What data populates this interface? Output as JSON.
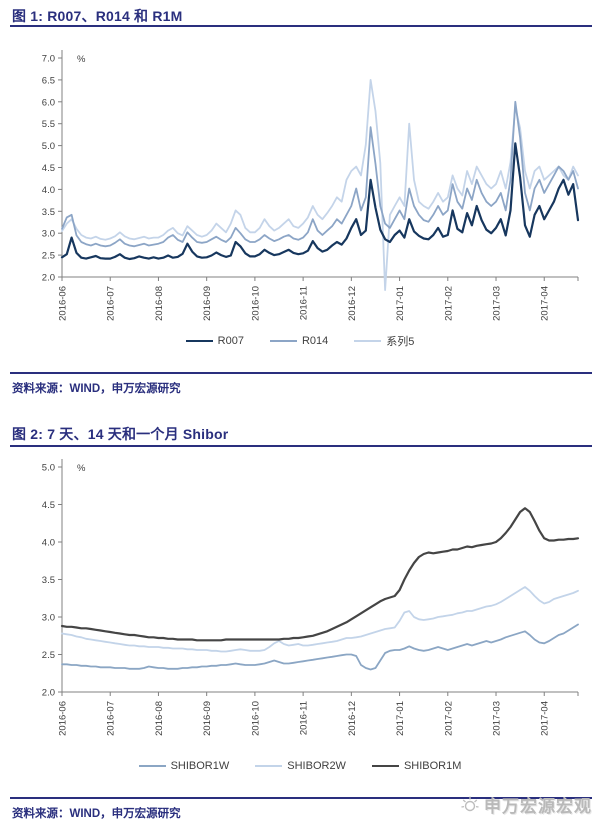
{
  "accent_color": "#2A2F7E",
  "figure1": {
    "title": "图 1: R007、R014 和 R1M",
    "source": "资料来源：WIND，申万宏源研究"
  },
  "figure2": {
    "title": "图 2: 7 天、14 天和一个月 Shibor",
    "source": "资料来源：WIND，申万宏源研究"
  },
  "watermark": {
    "text": "申万宏源宏观"
  },
  "chart_data": [
    {
      "type": "line",
      "title": "图 1: R007、R014 和 R1M",
      "ylabel": "%",
      "ylim": [
        2.0,
        7.0
      ],
      "ytick_step": 0.5,
      "grid": false,
      "legend_position": "bottom",
      "x_tick_labels": [
        "2016-06",
        "2016-07",
        "2016-08",
        "2016-09",
        "2016-10",
        "2016-11",
        "2016-12",
        "2017-01",
        "2017-02",
        "2017-03",
        "2017-04"
      ],
      "draw_reversed": true,
      "series": [
        {
          "name": "R007",
          "color": "#17375E",
          "width": 2.2,
          "values": [
            2.45,
            2.52,
            2.9,
            2.55,
            2.44,
            2.42,
            2.45,
            2.48,
            2.43,
            2.42,
            2.42,
            2.46,
            2.52,
            2.44,
            2.41,
            2.43,
            2.47,
            2.44,
            2.42,
            2.45,
            2.42,
            2.44,
            2.49,
            2.44,
            2.46,
            2.53,
            2.76,
            2.58,
            2.47,
            2.44,
            2.45,
            2.49,
            2.56,
            2.5,
            2.46,
            2.49,
            2.8,
            2.7,
            2.54,
            2.47,
            2.47,
            2.52,
            2.62,
            2.55,
            2.5,
            2.52,
            2.57,
            2.62,
            2.55,
            2.52,
            2.54,
            2.6,
            2.82,
            2.66,
            2.58,
            2.62,
            2.72,
            2.8,
            2.74,
            2.88,
            3.12,
            3.32,
            2.96,
            3.06,
            4.22,
            3.58,
            3.08,
            2.86,
            2.8,
            2.96,
            3.06,
            2.9,
            3.32,
            3.04,
            2.94,
            2.88,
            2.86,
            2.96,
            3.12,
            2.92,
            2.96,
            3.52,
            3.1,
            3.02,
            3.46,
            3.18,
            3.62,
            3.3,
            3.08,
            3.0,
            3.12,
            3.32,
            2.95,
            3.52,
            5.05,
            4.28,
            3.18,
            2.92,
            3.42,
            3.62,
            3.32,
            3.52,
            3.72,
            4.02,
            4.22,
            3.88,
            4.12,
            3.3
          ]
        },
        {
          "name": "R014",
          "color": "#8CA5C6",
          "width": 1.8,
          "values": [
            3.1,
            3.36,
            3.42,
            2.95,
            2.8,
            2.75,
            2.72,
            2.76,
            2.72,
            2.7,
            2.72,
            2.78,
            2.86,
            2.76,
            2.72,
            2.7,
            2.73,
            2.76,
            2.72,
            2.74,
            2.76,
            2.8,
            2.9,
            2.96,
            2.85,
            2.8,
            3.02,
            2.9,
            2.8,
            2.78,
            2.8,
            2.86,
            2.92,
            2.85,
            2.8,
            2.9,
            3.12,
            3.0,
            2.86,
            2.8,
            2.8,
            2.86,
            2.96,
            2.88,
            2.82,
            2.86,
            2.92,
            2.96,
            2.88,
            2.85,
            2.9,
            3.02,
            3.32,
            3.06,
            2.96,
            3.06,
            3.16,
            3.32,
            3.22,
            3.42,
            3.62,
            4.02,
            3.52,
            3.82,
            5.42,
            4.58,
            3.62,
            3.22,
            3.12,
            3.32,
            3.52,
            3.32,
            4.02,
            3.62,
            3.42,
            3.3,
            3.26,
            3.42,
            3.62,
            3.42,
            3.52,
            4.12,
            3.72,
            3.56,
            4.02,
            3.76,
            4.22,
            3.92,
            3.72,
            3.62,
            3.72,
            3.92,
            3.52,
            4.22,
            6.0,
            5.18,
            3.92,
            3.52,
            4.02,
            4.22,
            3.92,
            4.12,
            4.32,
            4.52,
            4.42,
            4.22,
            4.42,
            4.02
          ]
        },
        {
          "name": "系列5",
          "color": "#C4D4E9",
          "width": 1.8,
          "values": [
            3.05,
            3.22,
            3.32,
            3.1,
            2.96,
            2.9,
            2.88,
            2.92,
            2.87,
            2.85,
            2.88,
            2.93,
            3.02,
            2.93,
            2.88,
            2.86,
            2.89,
            2.92,
            2.88,
            2.9,
            2.9,
            2.96,
            3.06,
            3.12,
            3.0,
            2.95,
            3.16,
            3.06,
            2.96,
            2.92,
            2.96,
            3.06,
            3.22,
            3.12,
            3.02,
            3.22,
            3.52,
            3.42,
            3.12,
            3.02,
            3.02,
            3.12,
            3.32,
            3.16,
            3.06,
            3.12,
            3.22,
            3.32,
            3.16,
            3.12,
            3.22,
            3.36,
            3.62,
            3.42,
            3.32,
            3.46,
            3.62,
            3.82,
            3.72,
            4.22,
            4.42,
            4.52,
            4.32,
            5.02,
            6.5,
            5.78,
            4.6,
            1.7,
            3.42,
            3.62,
            3.82,
            3.62,
            5.5,
            4.22,
            3.72,
            3.62,
            3.56,
            3.72,
            3.92,
            3.72,
            3.82,
            4.32,
            4.02,
            3.86,
            4.42,
            4.12,
            4.52,
            4.32,
            4.12,
            4.02,
            4.12,
            4.42,
            4.02,
            4.62,
            5.88,
            5.4,
            4.42,
            4.02,
            4.42,
            4.52,
            4.22,
            4.32,
            4.42,
            4.52,
            4.32,
            4.22,
            4.52,
            4.32
          ]
        }
      ]
    },
    {
      "type": "line",
      "title": "图 2: 7 天、14 天和一个月 Shibor",
      "ylabel": "%",
      "ylim": [
        2.0,
        5.0
      ],
      "ytick_step": 0.5,
      "grid": false,
      "legend_position": "bottom",
      "x_tick_labels": [
        "2016-06",
        "2016-07",
        "2016-08",
        "2016-09",
        "2016-10",
        "2016-11",
        "2016-12",
        "2017-01",
        "2017-02",
        "2017-03",
        "2017-04"
      ],
      "draw_reversed": false,
      "series": [
        {
          "name": "SHIBOR1W",
          "color": "#8BA6C4",
          "width": 1.8,
          "values": [
            2.37,
            2.37,
            2.36,
            2.36,
            2.35,
            2.35,
            2.34,
            2.34,
            2.33,
            2.33,
            2.33,
            2.32,
            2.32,
            2.32,
            2.31,
            2.31,
            2.31,
            2.32,
            2.34,
            2.33,
            2.32,
            2.32,
            2.31,
            2.31,
            2.31,
            2.32,
            2.32,
            2.33,
            2.33,
            2.34,
            2.34,
            2.35,
            2.35,
            2.36,
            2.36,
            2.37,
            2.38,
            2.37,
            2.36,
            2.36,
            2.36,
            2.37,
            2.38,
            2.4,
            2.42,
            2.4,
            2.38,
            2.38,
            2.39,
            2.4,
            2.41,
            2.42,
            2.43,
            2.44,
            2.45,
            2.46,
            2.47,
            2.48,
            2.49,
            2.5,
            2.5,
            2.48,
            2.36,
            2.32,
            2.3,
            2.32,
            2.42,
            2.52,
            2.55,
            2.56,
            2.56,
            2.58,
            2.61,
            2.58,
            2.56,
            2.55,
            2.56,
            2.58,
            2.6,
            2.58,
            2.56,
            2.58,
            2.6,
            2.62,
            2.64,
            2.62,
            2.64,
            2.66,
            2.68,
            2.66,
            2.68,
            2.7,
            2.73,
            2.75,
            2.77,
            2.79,
            2.81,
            2.76,
            2.7,
            2.66,
            2.65,
            2.68,
            2.72,
            2.76,
            2.78,
            2.82,
            2.86,
            2.9
          ]
        },
        {
          "name": "SHIBOR2W",
          "color": "#C3D4E9",
          "width": 1.8,
          "values": [
            2.78,
            2.77,
            2.76,
            2.74,
            2.73,
            2.71,
            2.7,
            2.69,
            2.68,
            2.67,
            2.66,
            2.65,
            2.64,
            2.63,
            2.62,
            2.62,
            2.61,
            2.61,
            2.6,
            2.6,
            2.6,
            2.59,
            2.59,
            2.58,
            2.58,
            2.58,
            2.57,
            2.57,
            2.56,
            2.56,
            2.56,
            2.55,
            2.55,
            2.54,
            2.54,
            2.55,
            2.56,
            2.57,
            2.56,
            2.55,
            2.55,
            2.55,
            2.56,
            2.6,
            2.65,
            2.68,
            2.64,
            2.62,
            2.63,
            2.64,
            2.62,
            2.62,
            2.63,
            2.64,
            2.65,
            2.66,
            2.67,
            2.68,
            2.7,
            2.72,
            2.72,
            2.73,
            2.74,
            2.76,
            2.78,
            2.8,
            2.82,
            2.84,
            2.85,
            2.86,
            2.95,
            3.06,
            3.08,
            3.0,
            2.97,
            2.96,
            2.97,
            2.98,
            3.0,
            3.01,
            3.02,
            3.03,
            3.05,
            3.06,
            3.08,
            3.08,
            3.1,
            3.12,
            3.14,
            3.15,
            3.17,
            3.2,
            3.24,
            3.28,
            3.32,
            3.36,
            3.4,
            3.35,
            3.28,
            3.22,
            3.18,
            3.2,
            3.24,
            3.26,
            3.28,
            3.3,
            3.32,
            3.35
          ]
        },
        {
          "name": "SHIBOR1M",
          "color": "#454545",
          "width": 2.2,
          "values": [
            2.88,
            2.87,
            2.87,
            2.86,
            2.85,
            2.85,
            2.84,
            2.83,
            2.82,
            2.81,
            2.8,
            2.79,
            2.78,
            2.77,
            2.76,
            2.76,
            2.75,
            2.74,
            2.73,
            2.73,
            2.72,
            2.72,
            2.71,
            2.71,
            2.7,
            2.7,
            2.7,
            2.7,
            2.69,
            2.69,
            2.69,
            2.69,
            2.69,
            2.69,
            2.7,
            2.7,
            2.7,
            2.7,
            2.7,
            2.7,
            2.7,
            2.7,
            2.7,
            2.7,
            2.7,
            2.7,
            2.71,
            2.71,
            2.72,
            2.72,
            2.73,
            2.74,
            2.75,
            2.77,
            2.79,
            2.81,
            2.84,
            2.87,
            2.9,
            2.93,
            2.97,
            3.01,
            3.05,
            3.09,
            3.13,
            3.17,
            3.21,
            3.24,
            3.26,
            3.28,
            3.36,
            3.5,
            3.62,
            3.72,
            3.8,
            3.84,
            3.86,
            3.85,
            3.86,
            3.87,
            3.88,
            3.9,
            3.9,
            3.92,
            3.94,
            3.93,
            3.95,
            3.96,
            3.97,
            3.98,
            4.0,
            4.05,
            4.12,
            4.2,
            4.3,
            4.4,
            4.45,
            4.4,
            4.28,
            4.15,
            4.05,
            4.02,
            4.02,
            4.03,
            4.03,
            4.04,
            4.04,
            4.05
          ]
        }
      ]
    }
  ]
}
